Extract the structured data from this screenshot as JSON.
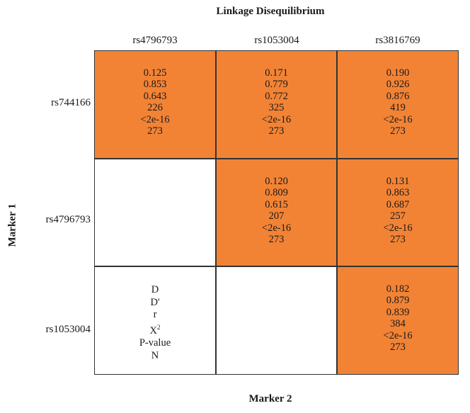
{
  "title": "Linkage Disequilibrium",
  "xlabel": "Marker 2",
  "ylabel": "Marker 1",
  "colors": {
    "filled": "#f28335",
    "empty": "#ffffff",
    "border": "#333333"
  },
  "legend": [
    "D",
    "D'",
    "r",
    "X²",
    "P-value",
    "N"
  ],
  "chart_data": {
    "type": "table",
    "title": "Linkage Disequilibrium",
    "xlabel": "Marker 2",
    "ylabel": "Marker 1",
    "columns": [
      "rs4796793",
      "rs1053004",
      "rs3816769"
    ],
    "rows": [
      "rs744166",
      "rs4796793",
      "rs1053004"
    ],
    "statistics": [
      "D",
      "D'",
      "r",
      "X²",
      "P-value",
      "N"
    ],
    "cells": [
      [
        {
          "D": "0.125",
          "D'": "0.853",
          "r": "0.643",
          "X2": "226",
          "P": "<2e-16",
          "N": "273"
        },
        {
          "D": "0.171",
          "D'": "0.779",
          "r": "0.772",
          "X2": "325",
          "P": "<2e-16",
          "N": "273"
        },
        {
          "D": "0.190",
          "D'": "0.926",
          "r": "0.876",
          "X2": "419",
          "P": "<2e-16",
          "N": "273"
        }
      ],
      [
        null,
        {
          "D": "0.120",
          "D'": "0.809",
          "r": "0.615",
          "X2": "207",
          "P": "<2e-16",
          "N": "273"
        },
        {
          "D": "0.131",
          "D'": "0.863",
          "r": "0.687",
          "X2": "257",
          "P": "<2e-16",
          "N": "273"
        }
      ],
      [
        "legend",
        null,
        {
          "D": "0.182",
          "D'": "0.879",
          "r": "0.839",
          "X2": "384",
          "P": "<2e-16",
          "N": "273"
        }
      ]
    ]
  }
}
